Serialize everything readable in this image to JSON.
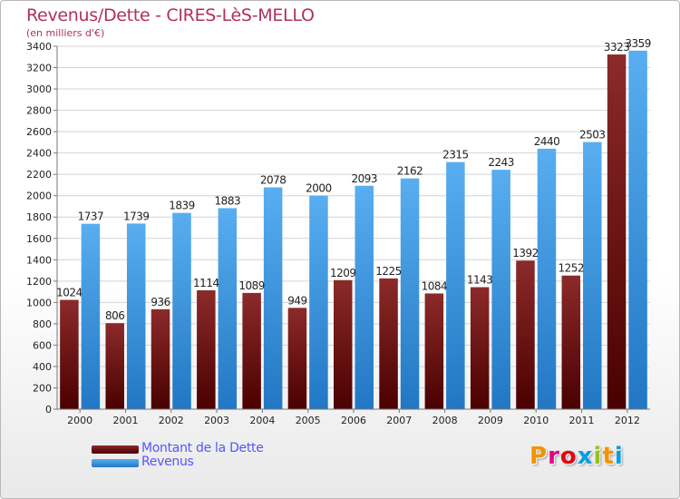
{
  "title": "Revenus/Dette - CIRES-LèS-MELLO",
  "subtitle": "(en milliers d'€)",
  "logo": {
    "text": "Proxiti",
    "colors": [
      "#f39200",
      "#e5007e",
      "#e30613",
      "#009fe3",
      "#95c11f",
      "#f39200",
      "#009fe3"
    ]
  },
  "chart_data": {
    "type": "bar",
    "title": "Revenus/Dette - CIRES-LèS-MELLO",
    "ylabel": "(en milliers d'€)",
    "xlabel": "",
    "ylim": [
      0,
      3400
    ],
    "ytick_step": 200,
    "grid": true,
    "legend_position": "bottom-left",
    "categories": [
      "2000",
      "2001",
      "2002",
      "2003",
      "2004",
      "2005",
      "2006",
      "2007",
      "2008",
      "2009",
      "2010",
      "2011",
      "2012"
    ],
    "series": [
      {
        "name": "Montant de la Dette",
        "color": "#7b1f1f",
        "values": [
          1024,
          806,
          936,
          1114,
          1089,
          949,
          1209,
          1225,
          1084,
          1143,
          1392,
          1252,
          3323
        ]
      },
      {
        "name": "Revenus",
        "color": "#3d9be4",
        "values": [
          1737,
          1739,
          1839,
          1883,
          2078,
          2000,
          2093,
          2162,
          2315,
          2243,
          2440,
          2503,
          3359
        ]
      }
    ]
  }
}
